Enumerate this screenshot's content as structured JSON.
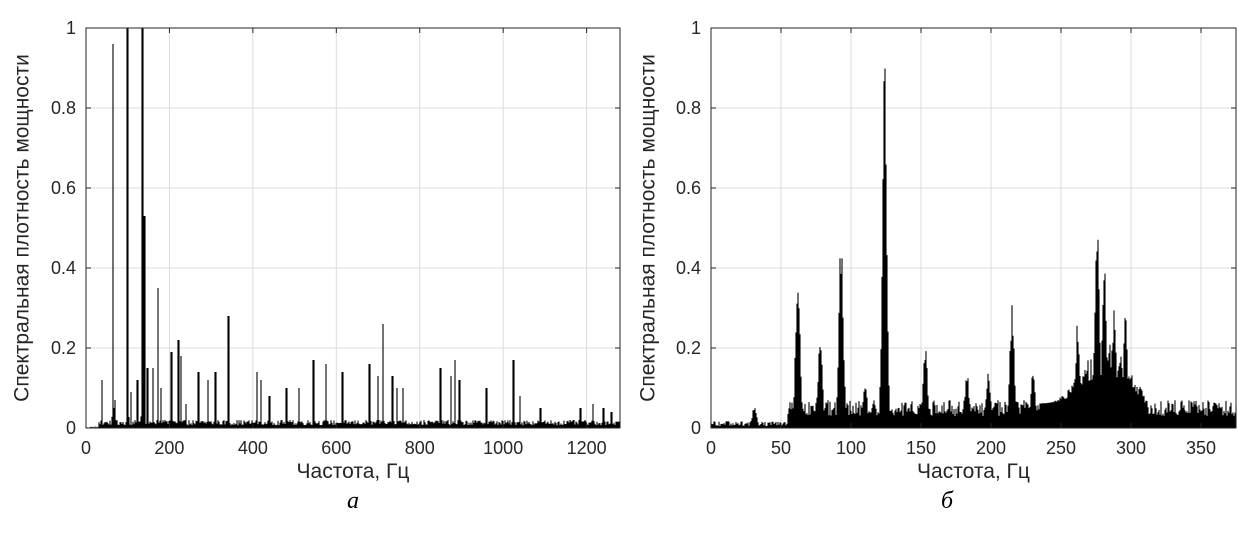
{
  "chart_data": [
    {
      "type": "line",
      "panel_label": "а",
      "xlabel": "Частота, Гц",
      "ylabel": "Спектральная плотность мощности",
      "xlim": [
        0,
        1280
      ],
      "ylim": [
        0,
        1
      ],
      "xticks": [
        0,
        200,
        400,
        600,
        800,
        1000,
        1200
      ],
      "xtick_labels": [
        "0",
        "200",
        "400",
        "600",
        "800",
        "1000",
        "1200"
      ],
      "yticks": [
        0,
        0.2,
        0.4,
        0.6,
        0.8,
        1
      ],
      "ytick_labels": [
        "0",
        "0.2",
        "0.4",
        "0.6",
        "0.8",
        "1"
      ],
      "grid": true,
      "line_color": "#000000",
      "noise_floor": 0.02,
      "peaks": [
        [
          38,
          0.12
        ],
        [
          65,
          0.96
        ],
        [
          70,
          0.07
        ],
        [
          100,
          1.0
        ],
        [
          108,
          0.09
        ],
        [
          123,
          0.12
        ],
        [
          135,
          1.0
        ],
        [
          140,
          0.53
        ],
        [
          148,
          0.15
        ],
        [
          160,
          0.15
        ],
        [
          172,
          0.35
        ],
        [
          180,
          0.1
        ],
        [
          205,
          0.19
        ],
        [
          222,
          0.22
        ],
        [
          228,
          0.18
        ],
        [
          240,
          0.06
        ],
        [
          270,
          0.14
        ],
        [
          292,
          0.12
        ],
        [
          310,
          0.14
        ],
        [
          342,
          0.28
        ],
        [
          410,
          0.14
        ],
        [
          420,
          0.12
        ],
        [
          440,
          0.08
        ],
        [
          480,
          0.1
        ],
        [
          510,
          0.1
        ],
        [
          545,
          0.17
        ],
        [
          575,
          0.16
        ],
        [
          615,
          0.14
        ],
        [
          680,
          0.16
        ],
        [
          700,
          0.13
        ],
        [
          712,
          0.26
        ],
        [
          735,
          0.13
        ],
        [
          745,
          0.1
        ],
        [
          760,
          0.1
        ],
        [
          850,
          0.15
        ],
        [
          875,
          0.13
        ],
        [
          885,
          0.17
        ],
        [
          895,
          0.12
        ],
        [
          960,
          0.1
        ],
        [
          1025,
          0.17
        ],
        [
          1040,
          0.08
        ],
        [
          1090,
          0.05
        ],
        [
          1185,
          0.05
        ],
        [
          1215,
          0.06
        ],
        [
          1240,
          0.05
        ],
        [
          1260,
          0.04
        ]
      ]
    },
    {
      "type": "line",
      "panel_label": "б",
      "xlabel": "Частота, Гц",
      "ylabel": "Спектральная плотность мощности",
      "xlim": [
        0,
        375
      ],
      "ylim": [
        0,
        1
      ],
      "xticks": [
        0,
        50,
        100,
        150,
        200,
        250,
        300,
        350
      ],
      "xtick_labels": [
        "0",
        "50",
        "100",
        "150",
        "200",
        "250",
        "300",
        "350"
      ],
      "yticks": [
        0,
        0.2,
        0.4,
        0.6,
        0.8,
        1
      ],
      "ytick_labels": [
        "0",
        "0.2",
        "0.4",
        "0.6",
        "0.8",
        "1"
      ],
      "grid": true,
      "line_color": "#000000",
      "noise_floor": 0.05,
      "peaks": [
        [
          31,
          0.06
        ],
        [
          62,
          0.4
        ],
        [
          78,
          0.23
        ],
        [
          93,
          0.51
        ],
        [
          110,
          0.12
        ],
        [
          124,
          1.0
        ],
        [
          153,
          0.22
        ],
        [
          170,
          0.07
        ],
        [
          183,
          0.14
        ],
        [
          198,
          0.15
        ],
        [
          215,
          0.32
        ],
        [
          230,
          0.15
        ],
        [
          262,
          0.28
        ],
        [
          276,
          0.53
        ],
        [
          281,
          0.43
        ],
        [
          288,
          0.3
        ],
        [
          296,
          0.28
        ],
        [
          310,
          0.08
        ],
        [
          330,
          0.05
        ],
        [
          360,
          0.05
        ]
      ]
    }
  ]
}
